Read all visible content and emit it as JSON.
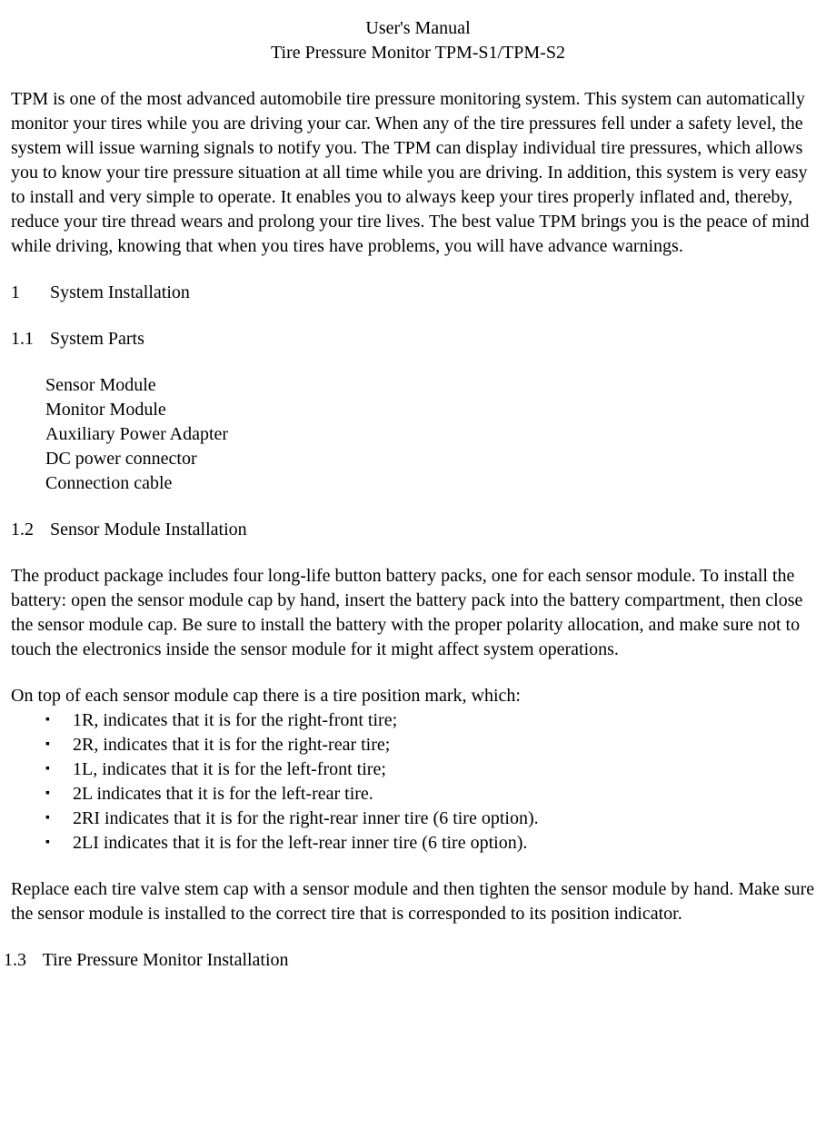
{
  "header": {
    "line1": "User's Manual",
    "line2": "Tire Pressure Monitor TPM-S1/TPM-S2"
  },
  "intro": "TPM is one of the most advanced automobile tire pressure monitoring system. This system can automatically monitor your tires while you are driving your car. When any of the tire pressures fell under a safety level, the system will issue warning signals to notify you. The TPM can display individual tire pressures, which allows you to know your tire pressure situation at all time while you are driving. In addition, this system is very easy to install and very simple to operate. It enables you to always keep your tires properly inflated and, thereby, reduce your tire thread wears and prolong your tire lives. The best value TPM brings you is the peace of mind while driving, knowing that when you tires have problems, you will have advance warnings.",
  "section1": {
    "number": "1",
    "title": "System Installation"
  },
  "section1_1": {
    "number": "1.1",
    "title": "System Parts",
    "parts": [
      "Sensor Module",
      "Monitor Module",
      "Auxiliary Power Adapter",
      "DC power connector",
      "Connection cable"
    ]
  },
  "section1_2": {
    "number": "1.2",
    "title": "Sensor Module Installation",
    "para1": "The product package includes four long-life button battery packs, one for each sensor module. To install the battery: open the sensor module cap by hand, insert the battery pack into the battery compartment, then close the sensor module cap. Be sure to install the battery with the proper polarity allocation, and make sure not to touch the electronics inside the sensor module for it might affect system operations.",
    "para2": "On top of each sensor module cap there is a tire position mark, which:",
    "bullets": [
      "1R, indicates that it is for the right-front tire;",
      "2R, indicates that it is for the right-rear tire;",
      "1L, indicates that it is for the left-front tire;",
      "2L indicates that it is for the left-rear tire.",
      "2RI indicates that it is for the right-rear inner tire (6 tire option).",
      "2LI indicates that it is for the left-rear inner tire (6 tire option)."
    ],
    "para3": "Replace each tire valve stem cap with a sensor module and then tighten the sensor module by hand. Make sure the sensor module is installed to the correct tire that is corresponded to its position indicator."
  },
  "section1_3": {
    "number": "1.3",
    "title": "Tire Pressure Monitor Installation"
  }
}
